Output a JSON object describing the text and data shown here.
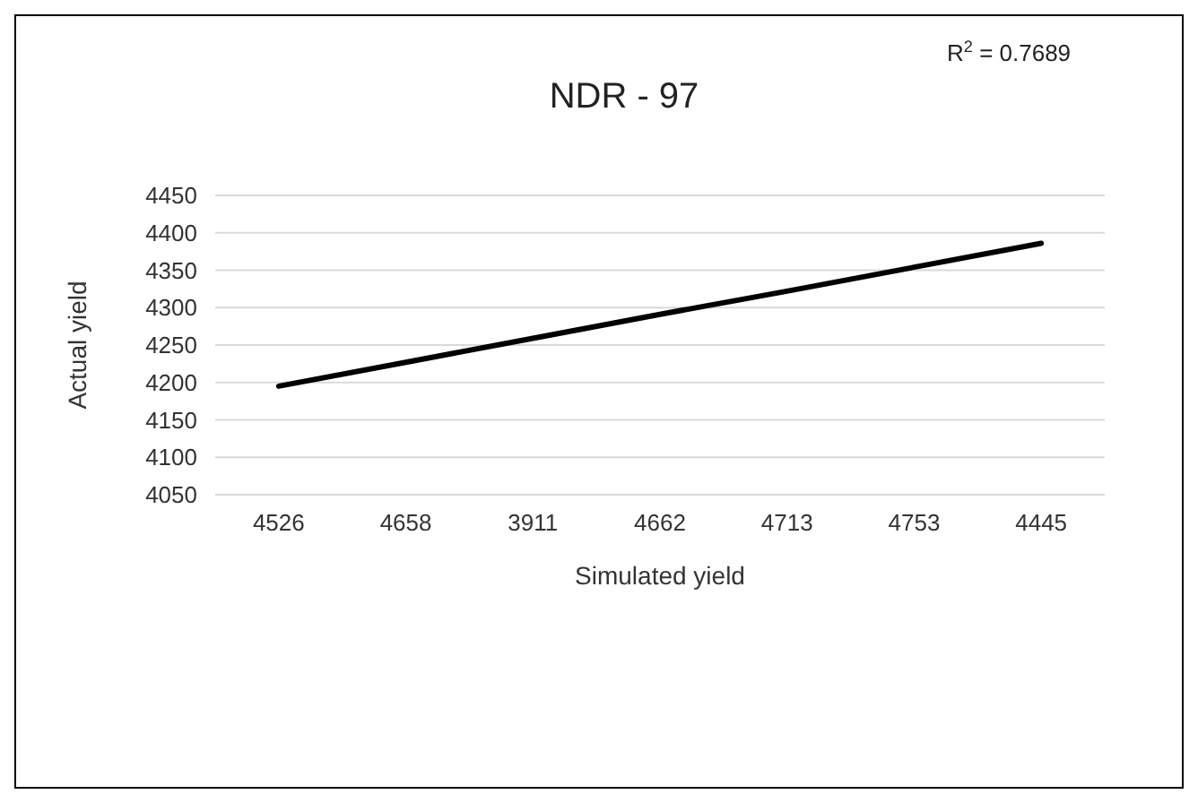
{
  "chart_data": {
    "type": "line",
    "title": "NDR - 97",
    "xlabel": "Simulated yield",
    "ylabel": "Actual yield",
    "annotations": [
      "R$^{2}$ = 0.7689"
    ],
    "categories": [
      "4526",
      "4658",
      "3911",
      "4662",
      "4713",
      "4753",
      "4445"
    ],
    "series": [
      {
        "color": "#000000",
        "values": [
          4195,
          4227,
          4259,
          4291,
          4322,
          4354,
          4386
        ]
      }
    ],
    "ylim": [
      4050,
      4450
    ],
    "yticks": [
      4050,
      4100,
      4150,
      4200,
      4250,
      4300,
      4350,
      4400,
      4450
    ],
    "grid": "y",
    "marker": "none"
  }
}
